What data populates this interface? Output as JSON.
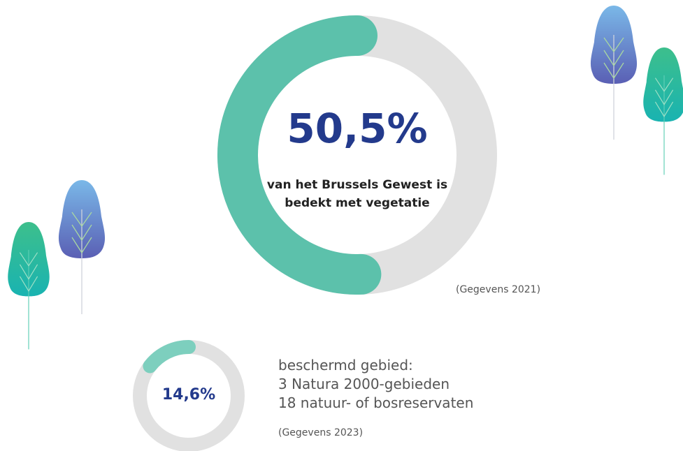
{
  "chart_data": [
    {
      "type": "donut",
      "values": [
        50.5
      ],
      "value_labels": [
        "50,5%"
      ],
      "color": "#5cc1ab",
      "track_color": "#e1e1e1",
      "text": "van het Brussels Gewest is bedekt met vegetatie",
      "source": "(Gegevens 2021)"
    },
    {
      "type": "donut",
      "values": [
        14.6
      ],
      "value_labels": [
        "14,6%"
      ],
      "color": "#7dcfbe",
      "track_color": "#e1e1e1",
      "lines": [
        "beschermd gebied:",
        "3 Natura 2000-gebieden",
        "18 natuur- of bosreservaten"
      ],
      "source": "(Gegevens 2023)"
    }
  ]
}
